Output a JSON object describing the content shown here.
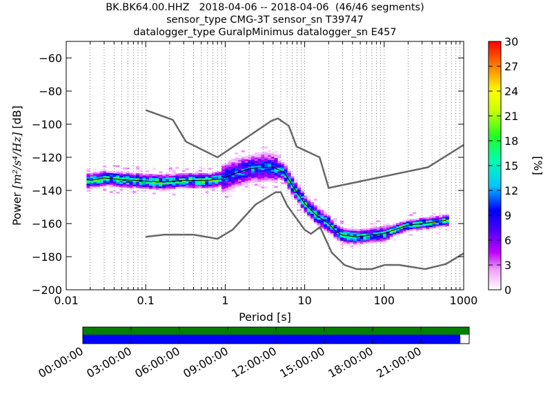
{
  "chart_data": {
    "type": "heatmap",
    "title_lines": [
      "BK.BK64.00.HHZ   2018-04-06 -- 2018-04-06  (46/46 segments)",
      "sensor_type CMG-3T sensor_sn T39747",
      "datalogger_type GuralpMinimus datalogger_sn E457"
    ],
    "xlabel": "Period [s]",
    "ylabel_prefix": "Power ",
    "ylabel_math": "[m²/s⁴/Hz]",
    "ylabel_suffix": " [dB]",
    "x_scale": "log",
    "xlim": [
      0.01,
      1000
    ],
    "ylim": [
      -200,
      -50
    ],
    "x_ticks": [
      0.01,
      0.1,
      1,
      10,
      100,
      1000
    ],
    "x_tick_labels": [
      "0.01",
      "0.1",
      "1",
      "10",
      "100",
      "1000"
    ],
    "y_ticks": [
      -200,
      -180,
      -160,
      -140,
      -120,
      -100,
      -80,
      -60
    ],
    "y_tick_labels": [
      "−200",
      "−180",
      "−160",
      "−140",
      "−120",
      "−100",
      "−80",
      "−60"
    ],
    "grid": "dotted vertical",
    "colorbar": {
      "label": "[%]",
      "range": [
        0,
        30
      ],
      "ticks": [
        0,
        3,
        6,
        9,
        12,
        15,
        18,
        21,
        24,
        27,
        30
      ],
      "tick_labels": [
        "0",
        "3",
        "6",
        "9",
        "12",
        "15",
        "18",
        "21",
        "24",
        "27",
        "30"
      ]
    },
    "noise_models": [
      {
        "name": "NHNM",
        "points": [
          [
            0.1,
            -91.5
          ],
          [
            0.22,
            -97.4
          ],
          [
            0.32,
            -110.5
          ],
          [
            0.8,
            -120
          ],
          [
            3.8,
            -98
          ],
          [
            4.6,
            -96.5
          ],
          [
            6.3,
            -101
          ],
          [
            7.9,
            -113.5
          ],
          [
            15.4,
            -120
          ],
          [
            20,
            -138.5
          ],
          [
            354.8,
            -126
          ],
          [
            1000,
            -112.5
          ]
        ]
      },
      {
        "name": "NLNM",
        "points": [
          [
            0.1,
            -168
          ],
          [
            0.17,
            -166.7
          ],
          [
            0.4,
            -166.7
          ],
          [
            0.8,
            -169.2
          ],
          [
            1.24,
            -163.7
          ],
          [
            2.4,
            -148.6
          ],
          [
            4.3,
            -141.1
          ],
          [
            5,
            -141.1
          ],
          [
            6,
            -149
          ],
          [
            10,
            -163.8
          ],
          [
            12,
            -166.2
          ],
          [
            15.6,
            -162.1
          ],
          [
            21.9,
            -177.5
          ],
          [
            31.6,
            -185
          ],
          [
            45,
            -187.5
          ],
          [
            70,
            -187.5
          ],
          [
            101,
            -185
          ],
          [
            154,
            -185
          ],
          [
            328,
            -187.5
          ],
          [
            600,
            -184.4
          ],
          [
            1000,
            -178
          ]
        ]
      }
    ],
    "mean_curve": {
      "name": "mean",
      "points": [
        [
          0.02,
          -134
        ],
        [
          0.03,
          -132.5
        ],
        [
          0.05,
          -133.5
        ],
        [
          0.08,
          -134
        ],
        [
          0.15,
          -135
        ],
        [
          0.3,
          -134
        ],
        [
          0.6,
          -134
        ],
        [
          0.9,
          -133
        ],
        [
          1.3,
          -130
        ],
        [
          2,
          -127
        ],
        [
          3,
          -126
        ],
        [
          4,
          -126
        ],
        [
          5.5,
          -129
        ],
        [
          7,
          -137
        ],
        [
          10,
          -148
        ],
        [
          14,
          -155
        ],
        [
          20,
          -160
        ],
        [
          25,
          -165
        ],
        [
          30,
          -167
        ],
        [
          45,
          -168
        ],
        [
          70,
          -167
        ],
        [
          100,
          -166
        ],
        [
          150,
          -163
        ],
        [
          200,
          -161
        ],
        [
          300,
          -160
        ],
        [
          450,
          -159
        ],
        [
          600,
          -158
        ]
      ]
    },
    "psd_density": {
      "description_note": "",
      "bands": [
        {
          "x": [
            0.018,
            0.9
          ],
          "y_center": -134,
          "y_spread": 4,
          "peak_pct": 16
        },
        {
          "x": [
            0.9,
            4.5
          ],
          "y_center": -128,
          "y_spread": 8,
          "peak_pct": 10
        },
        {
          "x": [
            4.5,
            20
          ],
          "y_center": -150,
          "y_spread": 5,
          "peak_pct": 14
        },
        {
          "x": [
            20,
            120
          ],
          "y_center": -167,
          "y_spread": 4,
          "peak_pct": 14
        },
        {
          "x": [
            120,
            650
          ],
          "y_center": -160,
          "y_spread": 3,
          "peak_pct": 16
        }
      ]
    },
    "timeline": {
      "tick_labels": [
        "00:00:00",
        "03:00:00",
        "06:00:00",
        "09:00:00",
        "12:00:00",
        "15:00:00",
        "18:00:00",
        "21:00:00"
      ],
      "data_coverage_fraction": 1.0,
      "psd_coverage_fraction": 0.977,
      "data_color": "#007f00",
      "psd_color": "#0000ff"
    },
    "colors": {
      "noise_model": "#666666",
      "mean": "#000000"
    }
  }
}
